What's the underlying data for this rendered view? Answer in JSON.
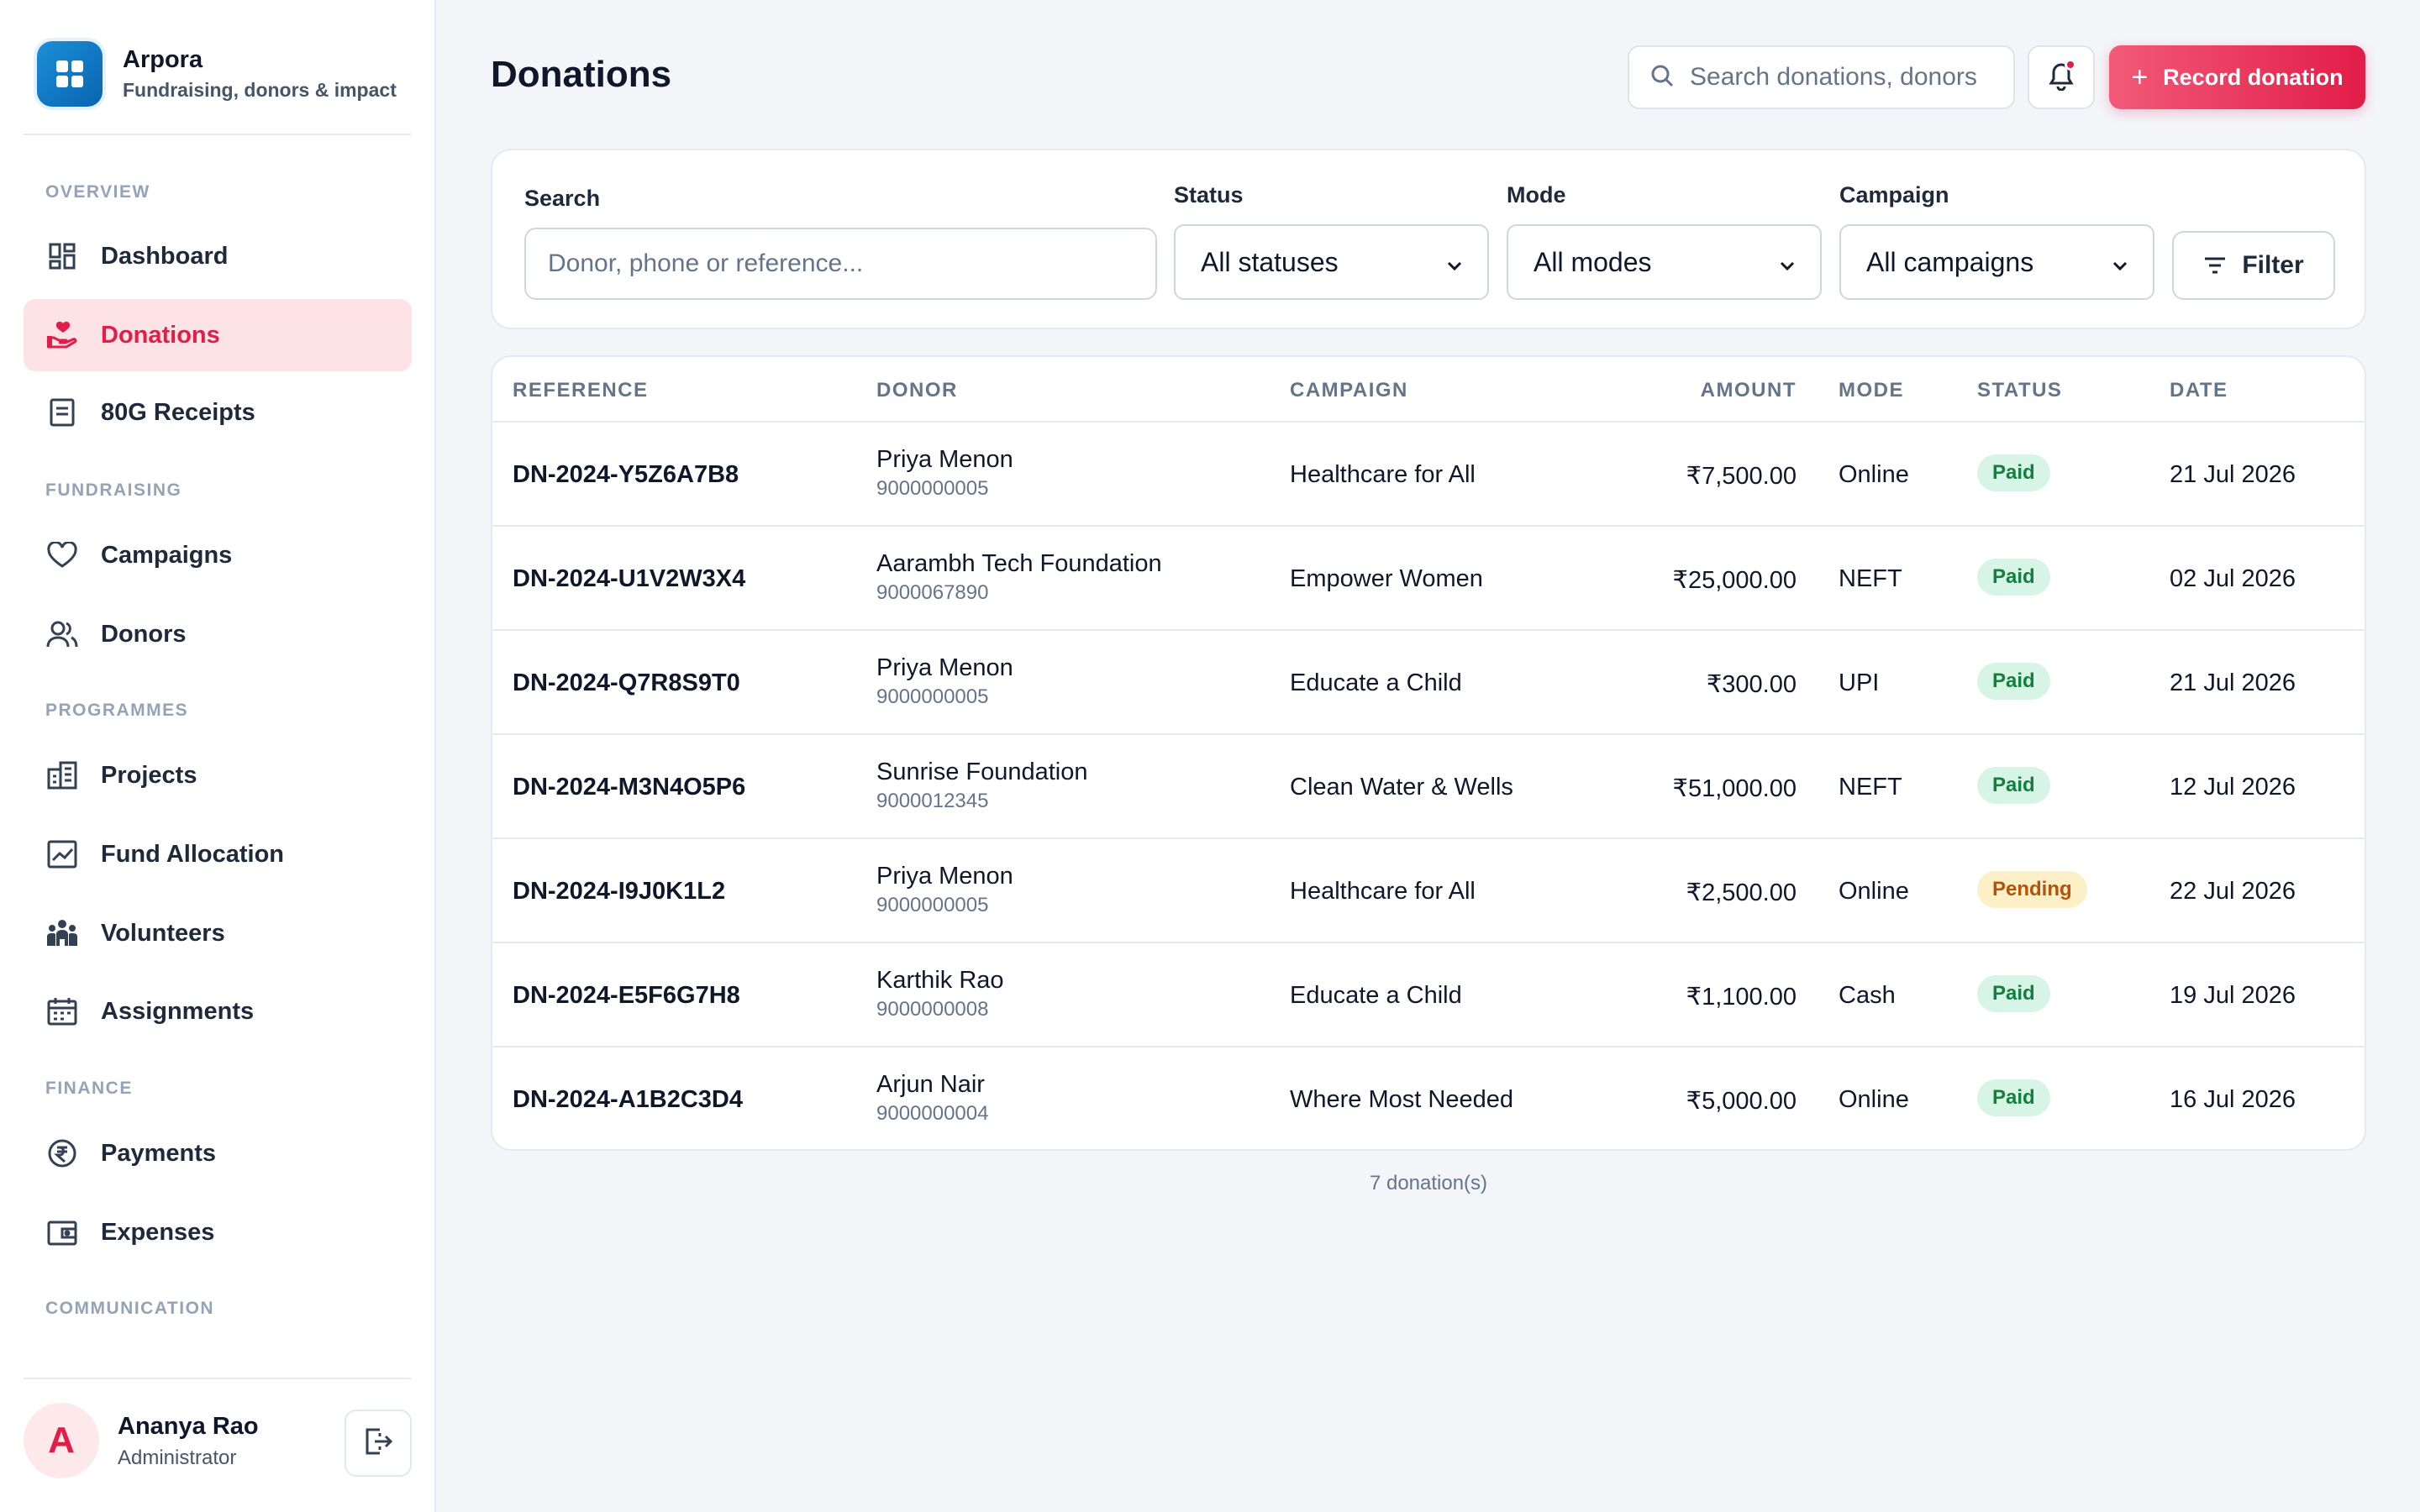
{
  "app": {
    "name": "Arpora",
    "tagline": "Fundraising, donors & impact"
  },
  "sidebar": {
    "sections": {
      "overview": "OVERVIEW",
      "fundraising": "FUNDRAISING",
      "programmes": "PROGRAMMES",
      "finance": "FINANCE",
      "communication": "COMMUNICATION"
    },
    "items": {
      "dashboard": "Dashboard",
      "donations": "Donations",
      "receipts": "80G Receipts",
      "campaigns": "Campaigns",
      "donors": "Donors",
      "projects": "Projects",
      "fund_allocation": "Fund Allocation",
      "volunteers": "Volunteers",
      "assignments": "Assignments",
      "payments": "Payments",
      "expenses": "Expenses"
    },
    "active": "donations",
    "user": {
      "initial": "A",
      "name": "Ananya Rao",
      "role": "Administrator"
    }
  },
  "header": {
    "title": "Donations",
    "search_placeholder": "Search donations, donors",
    "record_button": "Record donation",
    "notification_dot": true
  },
  "filters": {
    "search_label": "Search",
    "search_placeholder": "Donor, phone or reference...",
    "status_label": "Status",
    "status_value": "All statuses",
    "mode_label": "Mode",
    "mode_value": "All modes",
    "campaign_label": "Campaign",
    "campaign_value": "All campaigns",
    "filter_button": "Filter"
  },
  "table": {
    "columns": {
      "reference": "REFERENCE",
      "donor": "DONOR",
      "campaign": "CAMPAIGN",
      "amount": "AMOUNT",
      "mode": "MODE",
      "status": "STATUS",
      "date": "DATE"
    },
    "rows": [
      {
        "reference": "DN-2024-Y5Z6A7B8",
        "donor": "Priya Menon",
        "phone": "9000000005",
        "campaign": "Healthcare for All",
        "amount": "₹7,500.00",
        "mode": "Online",
        "status": "Paid",
        "date": "21 Jul 2026"
      },
      {
        "reference": "DN-2024-U1V2W3X4",
        "donor": "Aarambh Tech Foundation",
        "phone": "9000067890",
        "campaign": "Empower Women",
        "amount": "₹25,000.00",
        "mode": "NEFT",
        "status": "Paid",
        "date": "02 Jul 2026"
      },
      {
        "reference": "DN-2024-Q7R8S9T0",
        "donor": "Priya Menon",
        "phone": "9000000005",
        "campaign": "Educate a Child",
        "amount": "₹300.00",
        "mode": "UPI",
        "status": "Paid",
        "date": "21 Jul 2026"
      },
      {
        "reference": "DN-2024-M3N4O5P6",
        "donor": "Sunrise Foundation",
        "phone": "9000012345",
        "campaign": "Clean Water & Wells",
        "amount": "₹51,000.00",
        "mode": "NEFT",
        "status": "Paid",
        "date": "12 Jul 2026"
      },
      {
        "reference": "DN-2024-I9J0K1L2",
        "donor": "Priya Menon",
        "phone": "9000000005",
        "campaign": "Healthcare for All",
        "amount": "₹2,500.00",
        "mode": "Online",
        "status": "Pending",
        "date": "22 Jul 2026"
      },
      {
        "reference": "DN-2024-E5F6G7H8",
        "donor": "Karthik Rao",
        "phone": "9000000008",
        "campaign": "Educate a Child",
        "amount": "₹1,100.00",
        "mode": "Cash",
        "status": "Paid",
        "date": "19 Jul 2026"
      },
      {
        "reference": "DN-2024-A1B2C3D4",
        "donor": "Arjun Nair",
        "phone": "9000000004",
        "campaign": "Where Most Needed",
        "amount": "₹5,000.00",
        "mode": "Online",
        "status": "Paid",
        "date": "16 Jul 2026"
      }
    ],
    "count_text": "7 donation(s)"
  },
  "colors": {
    "accent": "#e11d48",
    "brand": "#1b8fd8",
    "paid_bg": "#d7f5e6",
    "paid_fg": "#15803d",
    "pending_bg": "#fdf0c7",
    "pending_fg": "#b45309"
  },
  "icons": {
    "brand": "grid-icon",
    "dashboard": "dashboard-icon",
    "donations": "hand-heart-icon",
    "receipts": "receipt-icon",
    "campaigns": "heart-icon",
    "donors": "users-icon",
    "projects": "building-icon",
    "fund_allocation": "chart-icon",
    "volunteers": "people-group-icon",
    "assignments": "calendar-icon",
    "payments": "rupee-icon",
    "expenses": "wallet-icon",
    "search": "search-icon",
    "bell": "bell-icon",
    "filter": "filter-icon",
    "logout": "logout-icon"
  }
}
